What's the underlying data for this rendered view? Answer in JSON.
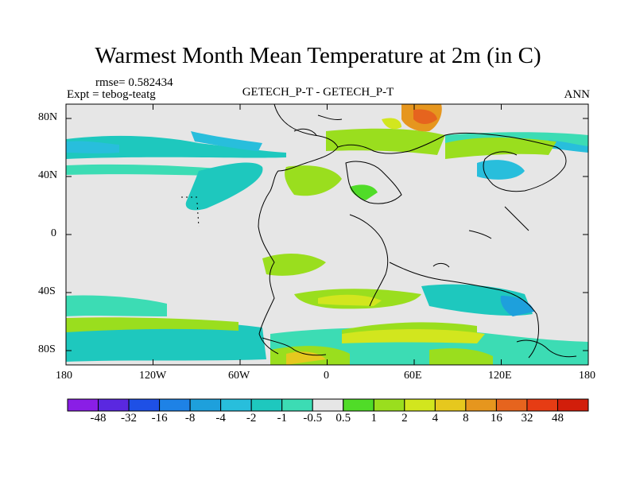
{
  "title": "Warmest Month Mean Temperature at 2m (in C)",
  "rmse_text": "rmse= 0.582434",
  "expt_text": "Expt = tebog-teatg",
  "center_text": "GETECH_P-T - GETECH_P-T",
  "season_text": "ANN",
  "lat_labels": [
    "80N",
    "40N",
    "0",
    "40S",
    "80S"
  ],
  "lon_labels": [
    "180",
    "120W",
    "60W",
    "0",
    "60E",
    "120E",
    "180"
  ],
  "colorbar": {
    "labels": [
      "-48",
      "-32",
      "-16",
      "-8",
      "-4",
      "-2",
      "-1",
      "-0.5",
      "0.5",
      "1",
      "2",
      "4",
      "8",
      "16",
      "32",
      "48"
    ],
    "colors": [
      "#8a1ee6",
      "#5a28e0",
      "#1e50e6",
      "#1e82e6",
      "#1ea0dc",
      "#28bedc",
      "#1ec8be",
      "#3cdcb4",
      "#e6e6e6",
      "#50dc28",
      "#9ade1e",
      "#d2e61e",
      "#e6c81e",
      "#e6961e",
      "#e6641e",
      "#e63c14",
      "#d21e0a"
    ]
  }
}
